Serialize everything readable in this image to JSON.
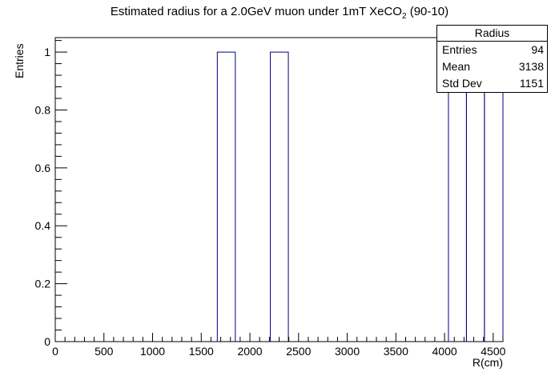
{
  "chart_data": {
    "type": "bar",
    "title": "Estimated radius for a 2.0GeV muon under 1mT XeCO",
    "title_subscript": "2",
    "title_suffix": " (90-10)",
    "xlabel": "R(cm)",
    "ylabel": "Entries",
    "xlim": [
      0,
      4600
    ],
    "ylim": [
      0,
      1.05
    ],
    "x_ticks": [
      0,
      500,
      1000,
      1500,
      2000,
      2500,
      3000,
      3500,
      4000,
      4500
    ],
    "x_tick_labels": [
      "0",
      "500",
      "1000",
      "1500",
      "2000",
      "2500",
      "3000",
      "3500",
      "4000",
      "4500"
    ],
    "y_ticks": [
      0,
      0.2,
      0.4,
      0.6,
      0.8,
      1
    ],
    "y_tick_labels": [
      "0",
      "0.2",
      "0.4",
      "0.6",
      "0.8",
      "1"
    ],
    "grid": false,
    "bar_color": "#000080",
    "bins": [
      {
        "x0": 1665,
        "x1": 1850,
        "value": 1
      },
      {
        "x0": 2210,
        "x1": 2395,
        "value": 1
      },
      {
        "x0": 4040,
        "x1": 4225,
        "value": 1
      },
      {
        "x0": 4225,
        "x1": 4410,
        "value": 1
      },
      {
        "x0": 4410,
        "x1": 4600,
        "value": 1
      }
    ],
    "stats": {
      "name": "Radius",
      "entries_label": "Entries",
      "entries": "94",
      "mean_label": "Mean",
      "mean": "3138",
      "stddev_label": "Std Dev",
      "stddev": "1151"
    }
  }
}
